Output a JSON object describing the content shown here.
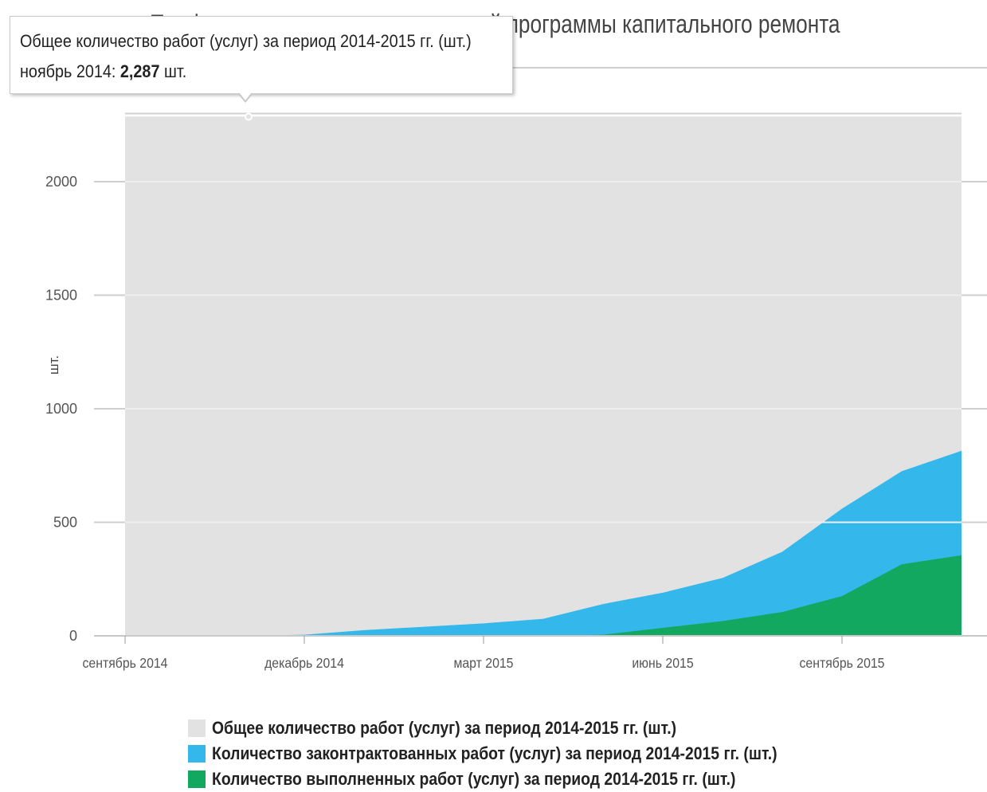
{
  "header": {
    "title": "Профиль исполнения региональной программы капитального ремонта"
  },
  "tooltip": {
    "series": "Общее количество работ (услуг) за период 2014-2015 гг. (шт.)",
    "category": "ноябрь 2014",
    "value": "2,287",
    "unit": "шт."
  },
  "colors": {
    "total": "#e2e2e2",
    "contracted": "#34b8eb",
    "completed": "#12a85f",
    "plot_border": "#d0d0d0",
    "grid": "#f2f2f2"
  },
  "chart_data": {
    "type": "area",
    "title": "Профиль исполнения региональной программы капитального ремонта",
    "xlabel": "",
    "ylabel": "шт.",
    "ylim": [
      0,
      2300
    ],
    "yticks": [
      0,
      500,
      1000,
      1500,
      2000
    ],
    "x": [
      "2014-09",
      "2014-10",
      "2014-11",
      "2014-12",
      "2015-01",
      "2015-02",
      "2015-03",
      "2015-04",
      "2015-05",
      "2015-06",
      "2015-07",
      "2015-08",
      "2015-09",
      "2015-10",
      "2015-11"
    ],
    "xtick_labels": [
      {
        "at": "2014-09",
        "label": "сентябрь 2014"
      },
      {
        "at": "2014-12",
        "label": "декабрь 2014"
      },
      {
        "at": "2015-03",
        "label": "март 2015"
      },
      {
        "at": "2015-06",
        "label": "июнь 2015"
      },
      {
        "at": "2015-09",
        "label": "сентябрь 2015"
      }
    ],
    "series": [
      {
        "name": "Общее количество работ (услуг) за период 2014-2015 гг. (шт.)",
        "color": "#e2e2e2",
        "values": [
          2287,
          2287,
          2287,
          2287,
          2287,
          2287,
          2287,
          2287,
          2287,
          2287,
          2287,
          2287,
          2287,
          2287,
          2287
        ]
      },
      {
        "name": "Количество законтрактованных работ (услуг) за период 2014-2015 гг. (шт.)",
        "color": "#34b8eb",
        "values": [
          0,
          0,
          0,
          5,
          25,
          40,
          55,
          75,
          140,
          190,
          255,
          370,
          560,
          725,
          815
        ]
      },
      {
        "name": "Количество выполненных работ (услуг) за период 2014-2015 гг. (шт.)",
        "color": "#12a85f",
        "values": [
          0,
          0,
          0,
          0,
          0,
          0,
          0,
          0,
          5,
          35,
          65,
          105,
          175,
          315,
          355
        ]
      }
    ],
    "grid": true,
    "legend": "bottom"
  }
}
